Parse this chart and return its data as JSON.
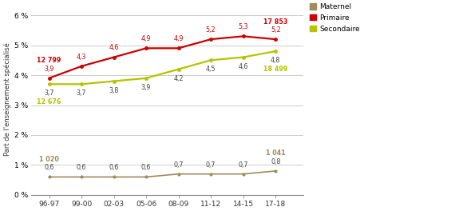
{
  "x_labels": [
    "96-97",
    "99-00",
    "02-03",
    "05-06",
    "08-09",
    "11-12",
    "14-15",
    "17-18"
  ],
  "x_values": [
    0,
    1,
    2,
    3,
    4,
    5,
    6,
    7
  ],
  "maternel": [
    0.6,
    0.6,
    0.6,
    0.6,
    0.7,
    0.7,
    0.7,
    0.8
  ],
  "primaire": [
    3.9,
    4.3,
    4.6,
    4.9,
    4.9,
    5.2,
    5.3,
    5.2
  ],
  "secondaire": [
    3.7,
    3.7,
    3.8,
    3.9,
    4.2,
    4.5,
    4.6,
    4.8
  ],
  "maternel_color": "#9e8c5a",
  "primaire_color": "#cc0000",
  "secondaire_color": "#b5c400",
  "ann_primaire_start": "12 799",
  "ann_primaire_end": "17 853",
  "ann_secondaire_start": "12 676",
  "ann_secondaire_end": "18 499",
  "ann_maternel_start": "1 020",
  "ann_maternel_end": "1 041",
  "data_labels_maternel": [
    "0,6",
    "0,6",
    "0,6",
    "0,6",
    "0,7",
    "0,7",
    "0,7",
    "0,8"
  ],
  "data_labels_primaire": [
    "3,9",
    "4,3",
    "4,6",
    "4,9",
    "4,9",
    "5,2",
    "5,3",
    "5,2"
  ],
  "data_labels_secondaire": [
    "3,7",
    "3,7",
    "3,8",
    "3,9",
    "4,2",
    "4,5",
    "4,6",
    "4,8"
  ],
  "ylabel": "Part de l'enseignement spécialisé",
  "ylim": [
    0,
    6.4
  ],
  "yticks": [
    0,
    1,
    2,
    3,
    4,
    5,
    6
  ],
  "legend_labels": [
    "Maternel",
    "Primaire",
    "Secondaire"
  ],
  "legend_colors": [
    "#9e8c5a",
    "#cc0000",
    "#b5c400"
  ],
  "bg_color": "#ffffff"
}
